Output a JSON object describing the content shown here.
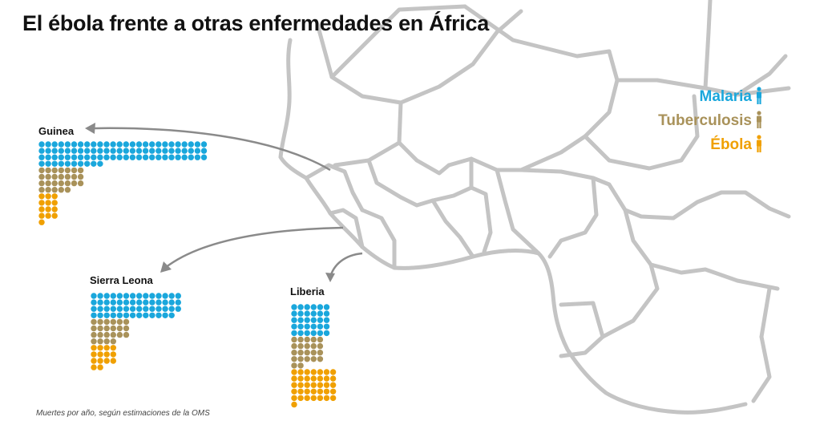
{
  "title": "El ébola frente a otras enfermedades en África",
  "source_note": "Muertes por año, según estimaciones de la OMS",
  "colors": {
    "malaria": "#1aa7dc",
    "tuberculosis": "#a9925a",
    "ebola": "#f0a000",
    "map_stroke": "#c4c4c4",
    "arrow": "#8a8a8a"
  },
  "legend": [
    {
      "label": "Malaria",
      "key": "malaria",
      "icon": "person-icon"
    },
    {
      "label": "Tuberculosis",
      "key": "tuberculosis",
      "icon": "person-icon"
    },
    {
      "label": "Ébola",
      "key": "ebola",
      "icon": "person-icon"
    }
  ],
  "chart_data": {
    "type": "pictograph",
    "unit": "Muertes por año",
    "countries": [
      {
        "name": "Guinea",
        "label": "Guinea",
        "malaria": 88,
        "tuberculosis": 26,
        "ebola": 13
      },
      {
        "name": "Sierra Leona",
        "label": "Sierra Leona",
        "malaria": 55,
        "tuberculosis": 22,
        "ebola": 14
      },
      {
        "name": "Liberia",
        "label": "Liberia",
        "malaria": 30,
        "tuberculosis": 22,
        "ebola": 36
      }
    ]
  }
}
